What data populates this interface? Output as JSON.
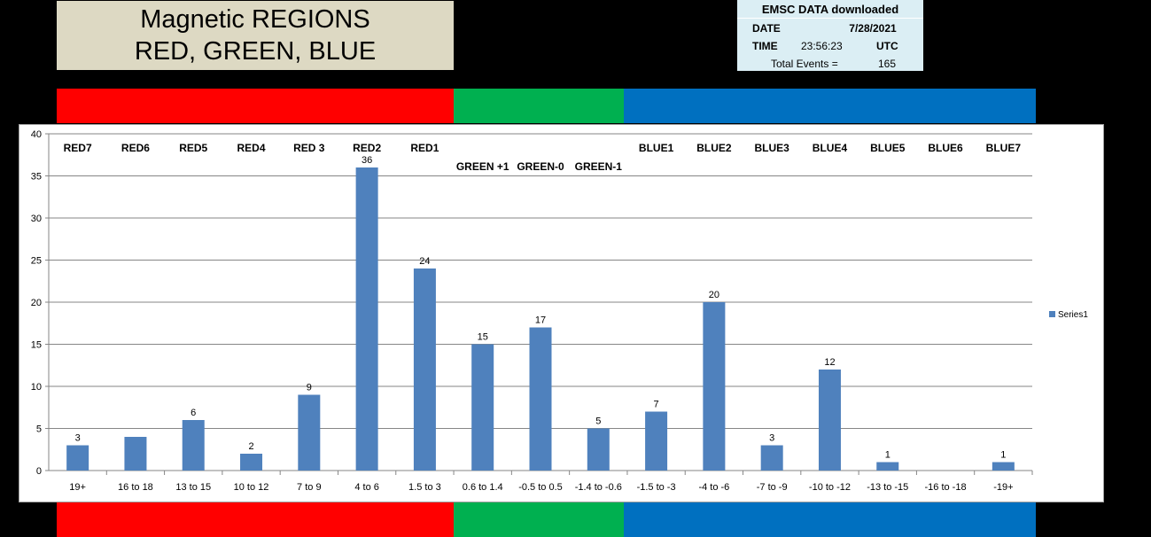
{
  "title": {
    "line1": "Magnetic REGIONS",
    "line2": "RED, GREEN, BLUE"
  },
  "info": {
    "header": "EMSC DATA downloaded",
    "date_label": "DATE",
    "date_value": "7/28/2021",
    "time_label": "TIME",
    "time_value": "23:56:23",
    "time_zone": "UTC",
    "events_label": "Total Events =",
    "events_value": "165"
  },
  "colors": {
    "red": "#ff0000",
    "green": "#00b050",
    "blue": "#0070c0",
    "bar": "#4f81bd",
    "title_bg": "#ddd9c3",
    "info_bg": "#dbeef4"
  },
  "chart_data": {
    "type": "bar",
    "categories": [
      "19+",
      "16 to 18",
      "13 to 15",
      "10 to 12",
      "7 to 9",
      "4 to 6",
      "1.5 to 3",
      "0.6 to 1.4",
      "-0.5 to 0.5",
      "-1.4 to -0.6",
      "-1.5 to -3",
      "-4 to -6",
      "-7 to -9",
      "-10 to -12",
      "-13 to -15",
      "-16 to -18",
      "-19+"
    ],
    "series": [
      {
        "name": "Series1",
        "values": [
          3,
          4,
          6,
          2,
          9,
          36,
          24,
          15,
          17,
          5,
          7,
          20,
          3,
          12,
          1,
          0,
          1
        ]
      }
    ],
    "data_labels": [
      "3",
      "",
      "6",
      "2",
      "9",
      "36",
      "24",
      "15",
      "17",
      "5",
      "7",
      "20",
      "3",
      "12",
      "1",
      "",
      "1"
    ],
    "ylim": [
      0,
      40
    ],
    "yticks": [
      0,
      5,
      10,
      15,
      20,
      25,
      30,
      35,
      40
    ],
    "grid": true,
    "legend": "right",
    "region_labels": [
      "RED7",
      "RED6",
      "RED5",
      "RED4",
      "RED 3",
      "RED2",
      "RED1",
      "GREEN +1",
      "GREEN-0",
      "GREEN-1",
      "BLUE1",
      "BLUE2",
      "BLUE3",
      "BLUE4",
      "BLUE5",
      "BLUE6",
      "BLUE7"
    ]
  }
}
